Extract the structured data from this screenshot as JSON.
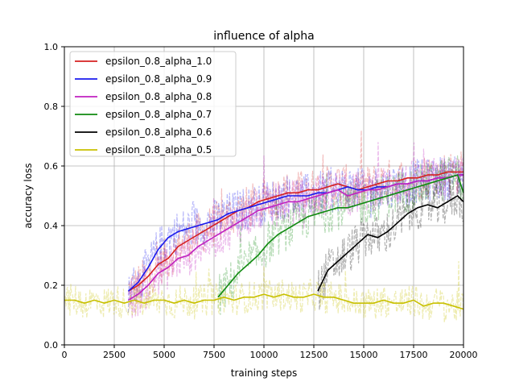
{
  "chart_data": {
    "type": "line",
    "title": "influence of alpha",
    "xlabel": "training steps",
    "ylabel": "accuracy loss",
    "xlim": [
      0,
      20000
    ],
    "ylim": [
      0.0,
      1.0
    ],
    "x_ticks": [
      0,
      2500,
      5000,
      7500,
      10000,
      12500,
      15000,
      17500,
      20000
    ],
    "x_tick_labels": [
      "0",
      "2500",
      "5000",
      "7500",
      "10000",
      "12500",
      "15000",
      "17500",
      "20000"
    ],
    "y_ticks": [
      0.0,
      0.2,
      0.4,
      0.6,
      0.8,
      1.0
    ],
    "y_tick_labels": [
      "0.0",
      "0.2",
      "0.4",
      "0.6",
      "0.8",
      "1.0"
    ],
    "grid": true,
    "legend_position": "top-left",
    "series": [
      {
        "name": "epsilon_0.8_alpha_1.0",
        "color": "#d62020",
        "x": [
          3200,
          3700,
          4200,
          4700,
          5200,
          5700,
          6200,
          6700,
          7200,
          7700,
          8200,
          8700,
          9200,
          9700,
          10200,
          10700,
          11200,
          11700,
          12200,
          12700,
          13200,
          13700,
          14200,
          14700,
          15200,
          15700,
          16200,
          16700,
          17200,
          17700,
          18200,
          18700,
          19200,
          19700,
          20000
        ],
        "y": [
          0.18,
          0.2,
          0.23,
          0.27,
          0.29,
          0.33,
          0.35,
          0.37,
          0.39,
          0.41,
          0.43,
          0.45,
          0.46,
          0.48,
          0.49,
          0.5,
          0.51,
          0.51,
          0.52,
          0.52,
          0.53,
          0.54,
          0.53,
          0.52,
          0.53,
          0.54,
          0.55,
          0.55,
          0.56,
          0.56,
          0.57,
          0.57,
          0.58,
          0.58,
          0.58
        ]
      },
      {
        "name": "epsilon_0.8_alpha_0.9",
        "color": "#1a1aee",
        "x": [
          3200,
          3700,
          4200,
          4700,
          5200,
          5700,
          6200,
          6700,
          7200,
          7700,
          8200,
          8700,
          9200,
          9700,
          10200,
          10700,
          11200,
          11700,
          12200,
          12700,
          13200,
          13700,
          14200,
          14700,
          15200,
          15700,
          16200,
          16700,
          17200,
          17700,
          18200,
          18700,
          19200,
          19700,
          20000
        ],
        "y": [
          0.18,
          0.21,
          0.26,
          0.32,
          0.36,
          0.38,
          0.39,
          0.4,
          0.41,
          0.42,
          0.44,
          0.45,
          0.46,
          0.47,
          0.48,
          0.49,
          0.5,
          0.5,
          0.5,
          0.51,
          0.51,
          0.52,
          0.53,
          0.52,
          0.52,
          0.53,
          0.53,
          0.54,
          0.54,
          0.55,
          0.55,
          0.56,
          0.56,
          0.57,
          0.57
        ]
      },
      {
        "name": "epsilon_0.8_alpha_0.8",
        "color": "#c020c0",
        "x": [
          3200,
          3700,
          4200,
          4700,
          5200,
          5700,
          6200,
          6700,
          7200,
          7700,
          8200,
          8700,
          9200,
          9700,
          10200,
          10700,
          11200,
          11700,
          12200,
          12700,
          13200,
          13700,
          14200,
          14700,
          15200,
          15700,
          16200,
          16700,
          17200,
          17700,
          18200,
          18700,
          19200,
          19700,
          20000
        ],
        "y": [
          0.15,
          0.17,
          0.2,
          0.24,
          0.26,
          0.29,
          0.3,
          0.33,
          0.35,
          0.37,
          0.39,
          0.41,
          0.43,
          0.45,
          0.46,
          0.47,
          0.48,
          0.48,
          0.49,
          0.5,
          0.51,
          0.52,
          0.5,
          0.51,
          0.52,
          0.52,
          0.53,
          0.54,
          0.54,
          0.55,
          0.55,
          0.56,
          0.56,
          0.57,
          0.57
        ]
      },
      {
        "name": "epsilon_0.8_alpha_0.7",
        "color": "#108a10",
        "x": [
          7700,
          8200,
          8700,
          9200,
          9700,
          10200,
          10700,
          11200,
          11700,
          12200,
          12700,
          13200,
          13700,
          14200,
          14700,
          15200,
          15700,
          16200,
          16700,
          17200,
          17700,
          18200,
          18700,
          19200,
          19700,
          20000
        ],
        "y": [
          0.16,
          0.2,
          0.24,
          0.27,
          0.3,
          0.34,
          0.37,
          0.39,
          0.41,
          0.43,
          0.44,
          0.45,
          0.46,
          0.46,
          0.47,
          0.48,
          0.49,
          0.5,
          0.51,
          0.52,
          0.53,
          0.54,
          0.55,
          0.56,
          0.57,
          0.51
        ]
      },
      {
        "name": "epsilon_0.8_alpha_0.6",
        "color": "#000000",
        "x": [
          12700,
          13200,
          13700,
          14200,
          14700,
          15200,
          15700,
          16200,
          16700,
          17200,
          17700,
          18200,
          18700,
          19200,
          19700,
          20000
        ],
        "y": [
          0.18,
          0.25,
          0.28,
          0.31,
          0.34,
          0.37,
          0.36,
          0.38,
          0.41,
          0.44,
          0.46,
          0.47,
          0.46,
          0.48,
          0.5,
          0.48
        ]
      },
      {
        "name": "epsilon_0.8_alpha_0.5",
        "color": "#c8c000",
        "x": [
          0,
          500,
          1000,
          1500,
          2000,
          2500,
          3000,
          3500,
          4000,
          4500,
          5000,
          5500,
          6000,
          6500,
          7000,
          7500,
          8000,
          8500,
          9000,
          9500,
          10000,
          10500,
          11000,
          11500,
          12000,
          12500,
          13000,
          13500,
          14000,
          14500,
          15000,
          15500,
          16000,
          16500,
          17000,
          17500,
          18000,
          18500,
          19000,
          19500,
          20000
        ],
        "y": [
          0.15,
          0.15,
          0.14,
          0.15,
          0.14,
          0.15,
          0.14,
          0.15,
          0.14,
          0.15,
          0.15,
          0.14,
          0.15,
          0.14,
          0.15,
          0.15,
          0.16,
          0.15,
          0.16,
          0.16,
          0.17,
          0.16,
          0.17,
          0.16,
          0.16,
          0.17,
          0.16,
          0.16,
          0.15,
          0.14,
          0.14,
          0.14,
          0.15,
          0.14,
          0.14,
          0.15,
          0.13,
          0.14,
          0.14,
          0.13,
          0.12
        ]
      }
    ]
  }
}
